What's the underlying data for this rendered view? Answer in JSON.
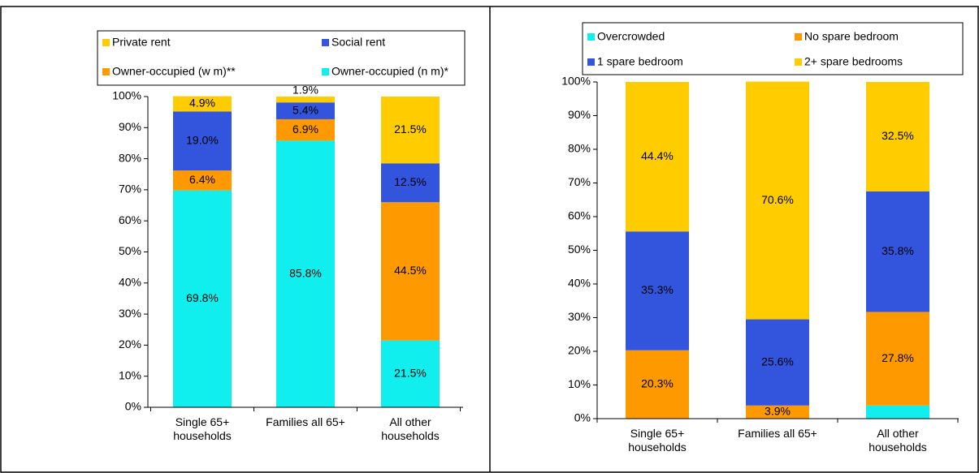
{
  "chart_data": [
    {
      "type": "bar",
      "stacked": true,
      "categories": [
        "Single 65+ households",
        "Families all 65+",
        "All other households"
      ],
      "series": [
        {
          "name": "Private rent",
          "color": "#ffcc00",
          "values": [
            4.9,
            1.9,
            21.5
          ],
          "value_labels": [
            "4.9%",
            "1.9%",
            "21.5%"
          ]
        },
        {
          "name": "Social rent",
          "color": "#3355dd",
          "values": [
            19.0,
            5.4,
            12.5
          ],
          "value_labels": [
            "19.0%",
            "5.4%",
            "12.5%"
          ]
        },
        {
          "name": "Owner-occupied (w m)**",
          "color": "#ff9900",
          "values": [
            6.4,
            6.9,
            44.5
          ],
          "value_labels": [
            "6.4%",
            "6.9%",
            "44.5%"
          ]
        },
        {
          "name": "Owner-occupied (n m)*",
          "color": "#11eeee",
          "values": [
            69.8,
            85.8,
            21.5
          ],
          "value_labels": [
            "69.8%",
            "85.8%",
            "21.5%"
          ]
        }
      ],
      "ylim": [
        0,
        100
      ],
      "yticks": [
        {
          "value": 0,
          "label": "0%"
        },
        {
          "value": 10,
          "label": "10%"
        },
        {
          "value": 20,
          "label": "20%"
        },
        {
          "value": 30,
          "label": "30%"
        },
        {
          "value": 40,
          "label": "40%"
        },
        {
          "value": 50,
          "label": "50%"
        },
        {
          "value": 60,
          "label": "60%"
        },
        {
          "value": 70,
          "label": "70%"
        },
        {
          "value": 80,
          "label": "80%"
        },
        {
          "value": 90,
          "label": "90%"
        },
        {
          "value": 100,
          "label": "100%"
        }
      ],
      "legend": "top"
    },
    {
      "type": "bar",
      "stacked": true,
      "categories": [
        "Single 65+ households",
        "Families all 65+",
        "All other households"
      ],
      "series": [
        {
          "name": "Overcrowded",
          "color": "#11eeee",
          "values": [
            0,
            0,
            3.9
          ],
          "value_labels": [
            null,
            null,
            null
          ]
        },
        {
          "name": "No spare bedroom",
          "color": "#ff9900",
          "values": [
            20.3,
            3.9,
            27.8
          ],
          "value_labels": [
            "20.3%",
            "3.9%",
            "27.8%"
          ]
        },
        {
          "name": "1 spare bedroom",
          "color": "#3355dd",
          "values": [
            35.3,
            25.6,
            35.8
          ],
          "value_labels": [
            "35.3%",
            "25.6%",
            "35.8%"
          ]
        },
        {
          "name": "2+ spare bedrooms",
          "color": "#ffcc00",
          "values": [
            44.4,
            70.6,
            32.5
          ],
          "value_labels": [
            "44.4%",
            "70.6%",
            "32.5%"
          ]
        }
      ],
      "ylim": [
        0,
        100
      ],
      "yticks": [
        {
          "value": 0,
          "label": "0%"
        },
        {
          "value": 10,
          "label": "10%"
        },
        {
          "value": 20,
          "label": "20%"
        },
        {
          "value": 30,
          "label": "30%"
        },
        {
          "value": 40,
          "label": "40%"
        },
        {
          "value": 50,
          "label": "50%"
        },
        {
          "value": 60,
          "label": "60%"
        },
        {
          "value": 70,
          "label": "70%"
        },
        {
          "value": 80,
          "label": "80%"
        },
        {
          "value": 90,
          "label": "90%"
        },
        {
          "value": 100,
          "label": "100%"
        }
      ],
      "legend": "top"
    }
  ]
}
